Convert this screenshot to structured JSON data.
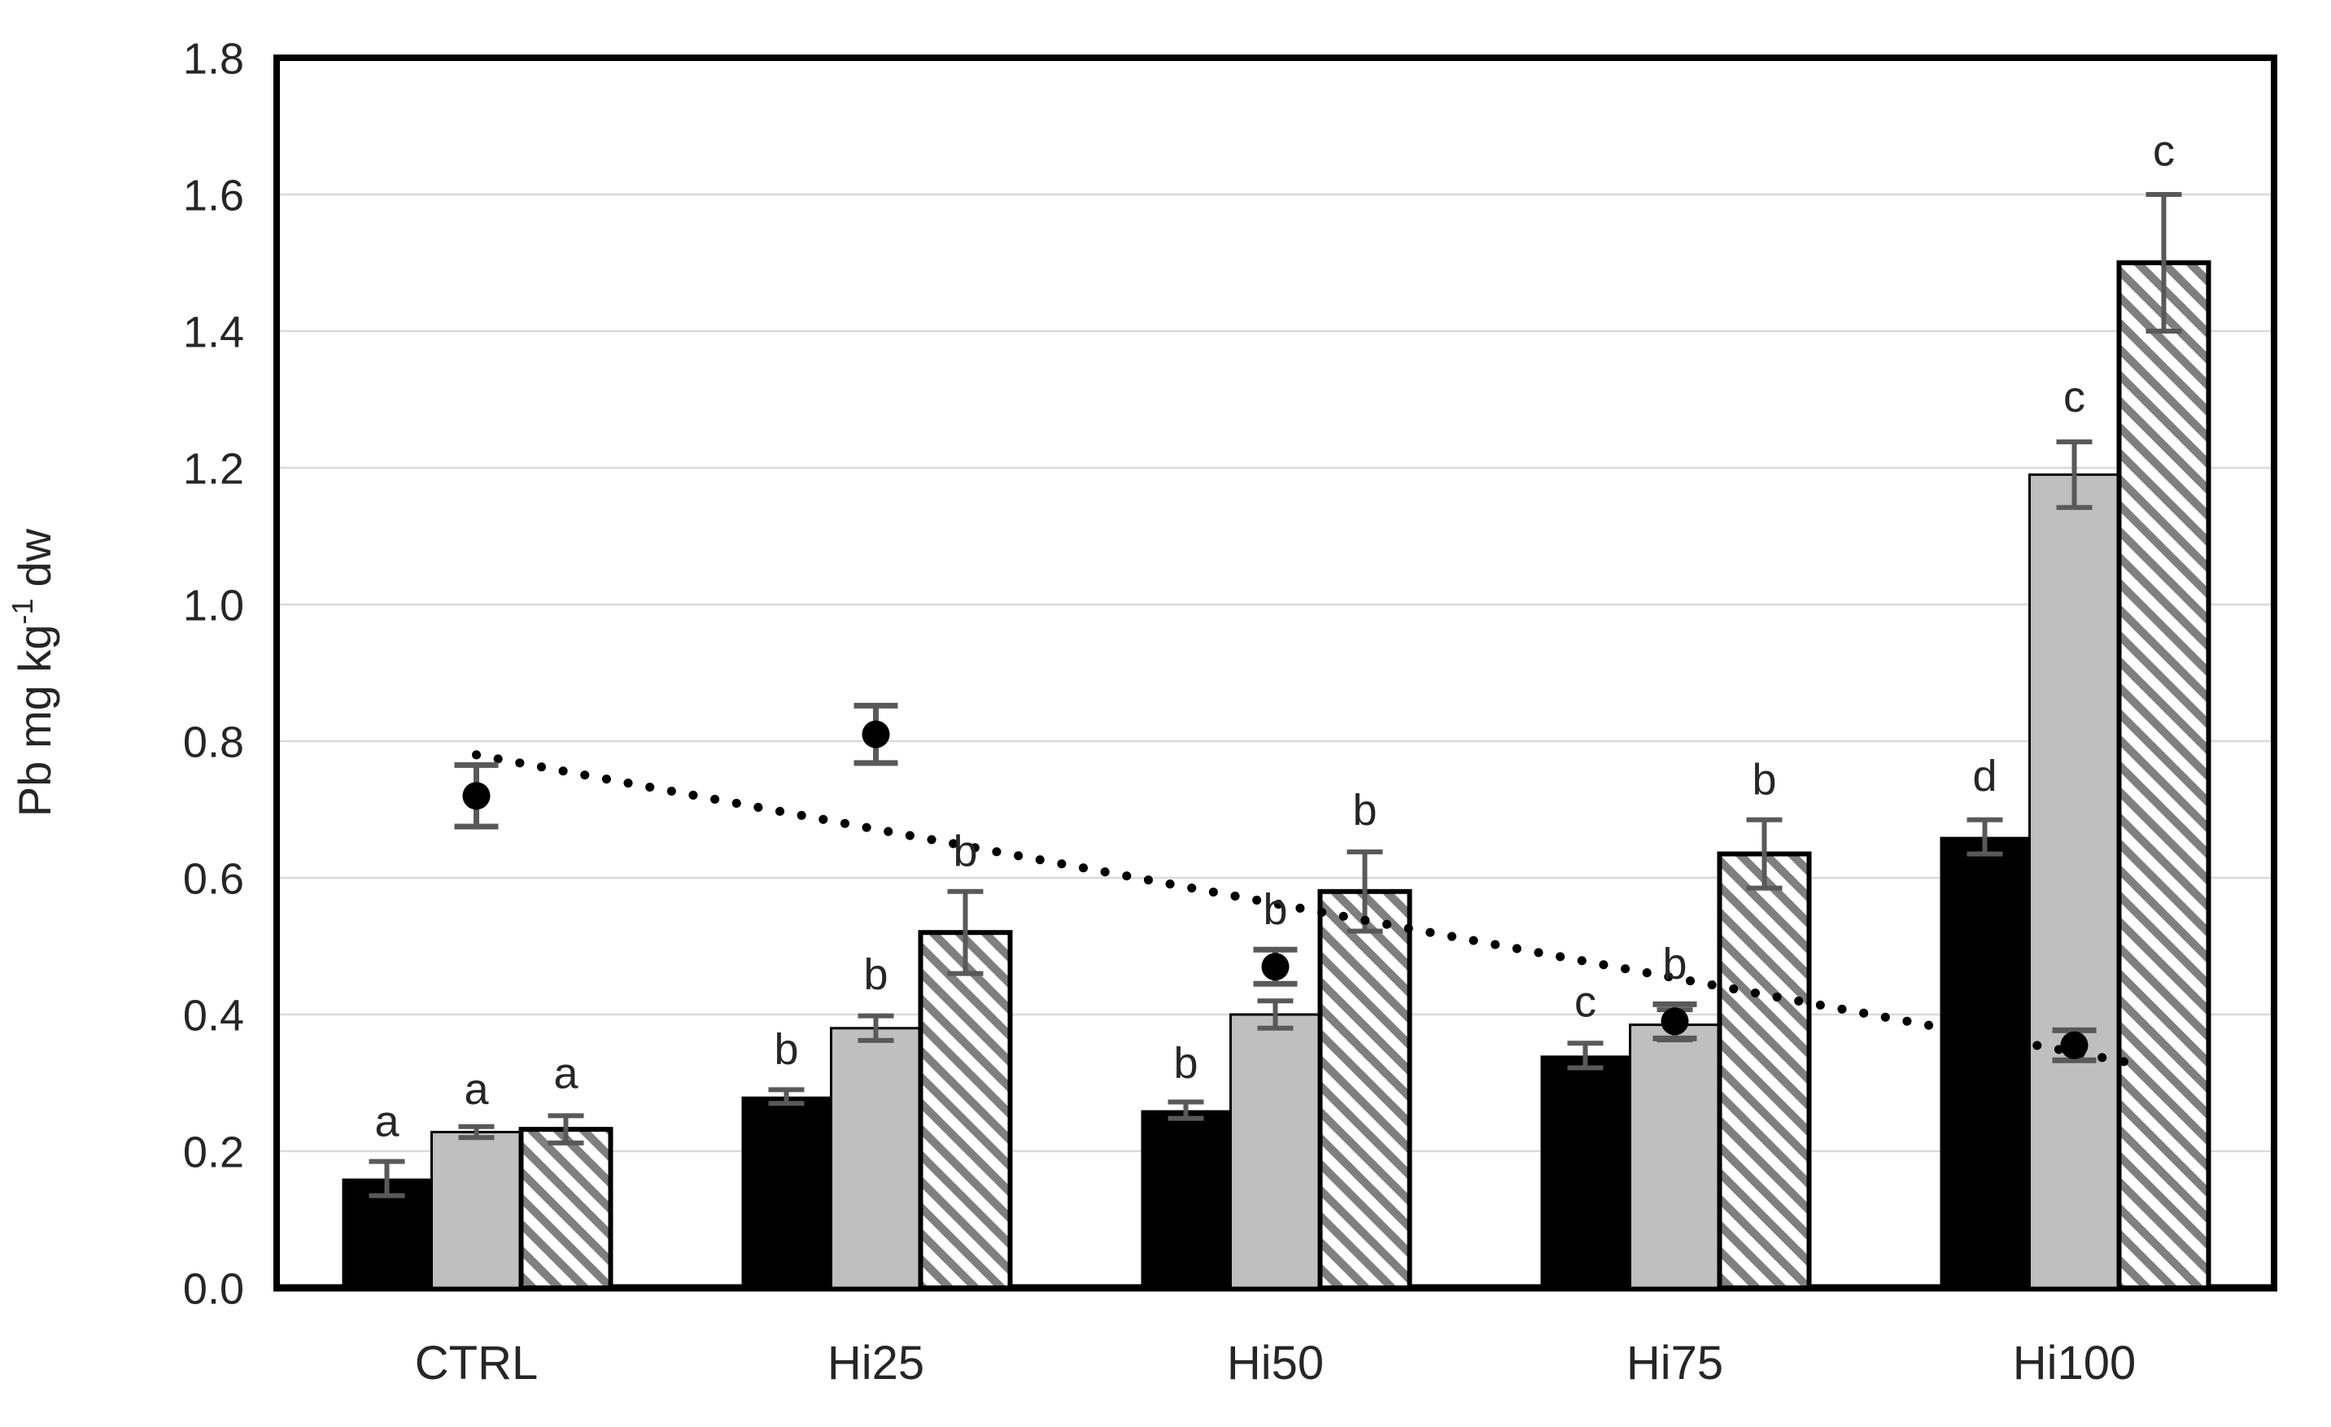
{
  "chart_data": {
    "type": "bar",
    "title": "",
    "xlabel": "",
    "ylabel": "Pb mg kg-1 dw",
    "ylabel_parts": {
      "base": "Pb mg kg",
      "superscript": "-1",
      "suffix": "dw"
    },
    "ylim": [
      0,
      1.8
    ],
    "ytick_step": 0.2,
    "ytick_labels": [
      "0.0",
      "0.2",
      "0.4",
      "0.6",
      "0.8",
      "1.0",
      "1.2",
      "1.4",
      "1.6",
      "1.8"
    ],
    "grid": "horizontal",
    "legend": "none",
    "categories": [
      "CTRL",
      "Hi25",
      "Hi50",
      "Hi75",
      "Hi100"
    ],
    "series": [
      {
        "name": "black-solid-bars",
        "fill": "#000000",
        "outline": "none",
        "values": [
          0.16,
          0.28,
          0.26,
          0.34,
          0.66
        ],
        "errors": [
          0.025,
          0.01,
          0.012,
          0.018,
          0.025
        ],
        "letters": [
          "a",
          "b",
          "b",
          "c",
          "d"
        ],
        "letter_pos": [
          0.215,
          0.32,
          0.3,
          0.39,
          0.72
        ]
      },
      {
        "name": "gray-solid-bars",
        "fill": "#bfbfbf",
        "outline": "#000000",
        "values": [
          0.228,
          0.38,
          0.4,
          0.385,
          1.19
        ],
        "errors": [
          0.008,
          0.018,
          0.02,
          0.022,
          0.048
        ],
        "letters": [
          "a",
          "b",
          "b",
          "b",
          "c"
        ],
        "letter_pos": [
          0.262,
          0.43,
          0.525,
          0.445,
          1.275
        ]
      },
      {
        "name": "diagonal-hatched-bars",
        "fill": "#ffffff",
        "hatch_color": "#7f7f7f",
        "outline": "#000000",
        "values": [
          0.232,
          0.52,
          0.58,
          0.635,
          1.5
        ],
        "errors": [
          0.02,
          0.06,
          0.058,
          0.05,
          0.1
        ],
        "letters": [
          "a",
          "b",
          "b",
          "b",
          "c"
        ],
        "letter_pos": [
          0.285,
          0.61,
          0.67,
          0.715,
          1.635
        ]
      }
    ],
    "scatter_series": {
      "name": "black-dot-markers",
      "marker": "filled-circle",
      "color": "#000000",
      "values": [
        0.72,
        0.81,
        0.47,
        0.39,
        0.355
      ],
      "errors": [
        0.045,
        0.042,
        0.025,
        0.025,
        0.022
      ]
    },
    "trendline": {
      "style": "dotted",
      "color": "#000000",
      "start_category_index": 0,
      "end_category_index": 4,
      "start_value": 0.78,
      "end_value": 0.33
    },
    "colors": {
      "grid": "#d9d9d9",
      "axis": "#000000",
      "error_bars": "#595959",
      "tick_text": "#262626",
      "letter_text": "#262626",
      "background": "#ffffff"
    }
  }
}
